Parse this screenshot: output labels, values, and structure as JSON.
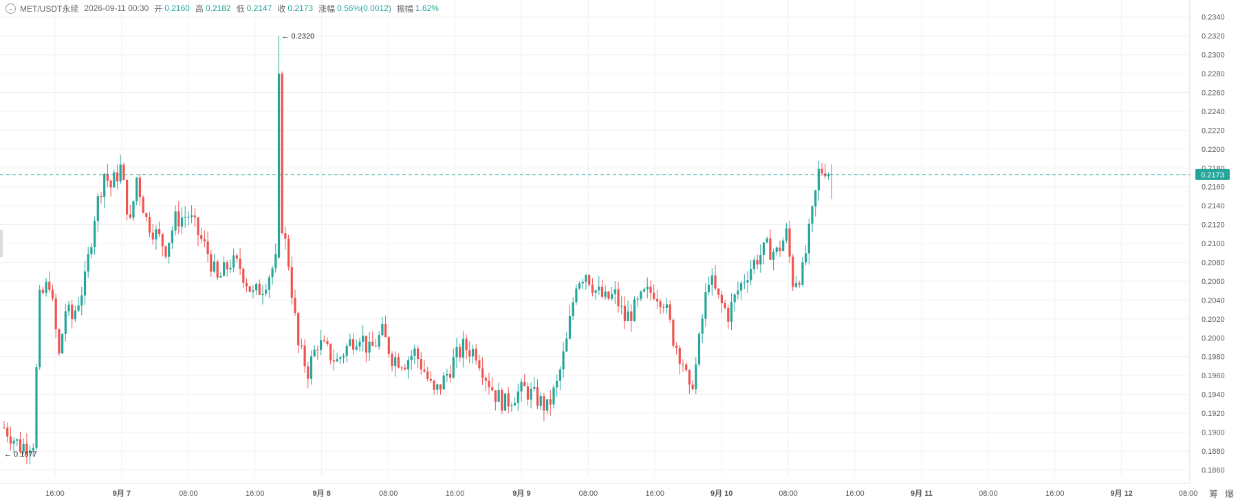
{
  "header": {
    "symbol": "MET/USDT永续",
    "datetime": "2026-09-11 00:30",
    "open_label": "开",
    "open": "0.2160",
    "high_label": "高",
    "high": "0.2182",
    "low_label": "低",
    "low": "0.2147",
    "close_label": "收",
    "close": "0.2173",
    "change_label": "涨幅",
    "change": "0.56%(0.0012)",
    "amplitude_label": "振幅",
    "amplitude": "1.62%"
  },
  "corner": {
    "btn1": "筹",
    "btn2": "爆"
  },
  "colors": {
    "up": "#26a69a",
    "down": "#ef5350",
    "grid": "#f0f0f0",
    "price_line": "#26a69a"
  },
  "chart_data": {
    "type": "candlestick",
    "y_ticks": [
      "0.1860",
      "0.1880",
      "0.1900",
      "0.1920",
      "0.1940",
      "0.1960",
      "0.1980",
      "0.2000",
      "0.2020",
      "0.2040",
      "0.2060",
      "0.2080",
      "0.2100",
      "0.2120",
      "0.2140",
      "0.2160",
      "0.2180",
      "0.2200",
      "0.2220",
      "0.2240",
      "0.2260",
      "0.2280",
      "0.2300",
      "0.2320",
      "0.2340"
    ],
    "ylim": [
      0.1853,
      0.2358
    ],
    "x_ticks": [
      "16:00",
      "9月 7",
      "08:00",
      "16:00",
      "9月 8",
      "08:00",
      "16:00",
      "9月 9",
      "08:00",
      "16:00",
      "9月 10",
      "08:00",
      "16:00",
      "9月 11",
      "08:00",
      "16:00",
      "9月 12",
      "08:00"
    ],
    "last_price": "0.2173",
    "max_label": "0.2320",
    "min_label": "0.1877",
    "candle_interval": "30m",
    "price_path": [
      [
        0,
        0.1905
      ],
      [
        5,
        0.1885
      ],
      [
        9,
        0.189
      ],
      [
        11,
        0.204
      ],
      [
        14,
        0.206
      ],
      [
        17,
        0.198
      ],
      [
        19,
        0.203
      ],
      [
        21,
        0.202
      ],
      [
        25,
        0.206
      ],
      [
        28,
        0.213
      ],
      [
        31,
        0.2175
      ],
      [
        33,
        0.216
      ],
      [
        36,
        0.218
      ],
      [
        39,
        0.212
      ],
      [
        41,
        0.217
      ],
      [
        44,
        0.2125
      ],
      [
        47,
        0.211
      ],
      [
        50,
        0.2095
      ],
      [
        53,
        0.2125
      ],
      [
        57,
        0.213
      ],
      [
        60,
        0.211
      ],
      [
        63,
        0.209
      ],
      [
        66,
        0.206
      ],
      [
        70,
        0.208
      ],
      [
        73,
        0.2075
      ],
      [
        77,
        0.2045
      ],
      [
        80,
        0.2055
      ],
      [
        84,
        0.208
      ],
      [
        85,
        0.227
      ],
      [
        86,
        0.212
      ],
      [
        88,
        0.208
      ],
      [
        91,
        0.199
      ],
      [
        94,
        0.1965
      ],
      [
        97,
        0.1995
      ],
      [
        100,
        0.1985
      ],
      [
        103,
        0.1975
      ],
      [
        107,
        0.1995
      ],
      [
        110,
        0.2005
      ],
      [
        113,
        0.1985
      ],
      [
        117,
        0.2005
      ],
      [
        120,
        0.198
      ],
      [
        124,
        0.1975
      ],
      [
        127,
        0.1985
      ],
      [
        130,
        0.1965
      ],
      [
        133,
        0.194
      ],
      [
        136,
        0.1955
      ],
      [
        139,
        0.1975
      ],
      [
        142,
        0.199
      ],
      [
        146,
        0.1985
      ],
      [
        149,
        0.196
      ],
      [
        152,
        0.194
      ],
      [
        155,
        0.193
      ],
      [
        158,
        0.194
      ],
      [
        161,
        0.1945
      ],
      [
        165,
        0.1935
      ],
      [
        168,
        0.1925
      ],
      [
        171,
        0.195
      ],
      [
        174,
        0.1995
      ],
      [
        177,
        0.206
      ],
      [
        180,
        0.207
      ],
      [
        183,
        0.205
      ],
      [
        186,
        0.204
      ],
      [
        189,
        0.2045
      ],
      [
        192,
        0.202
      ],
      [
        195,
        0.203
      ],
      [
        198,
        0.2045
      ],
      [
        201,
        0.205
      ],
      [
        204,
        0.204
      ],
      [
        207,
        0.2
      ],
      [
        210,
        0.1975
      ],
      [
        212,
        0.194
      ],
      [
        214,
        0.197
      ],
      [
        216,
        0.202
      ],
      [
        218,
        0.2065
      ],
      [
        221,
        0.204
      ],
      [
        224,
        0.2025
      ],
      [
        227,
        0.205
      ],
      [
        230,
        0.207
      ],
      [
        233,
        0.2085
      ],
      [
        236,
        0.2095
      ],
      [
        239,
        0.209
      ],
      [
        242,
        0.211
      ],
      [
        244,
        0.206
      ],
      [
        247,
        0.207
      ],
      [
        250,
        0.213
      ],
      [
        252,
        0.2175
      ],
      [
        254,
        0.218
      ],
      [
        256,
        0.2173
      ]
    ]
  }
}
